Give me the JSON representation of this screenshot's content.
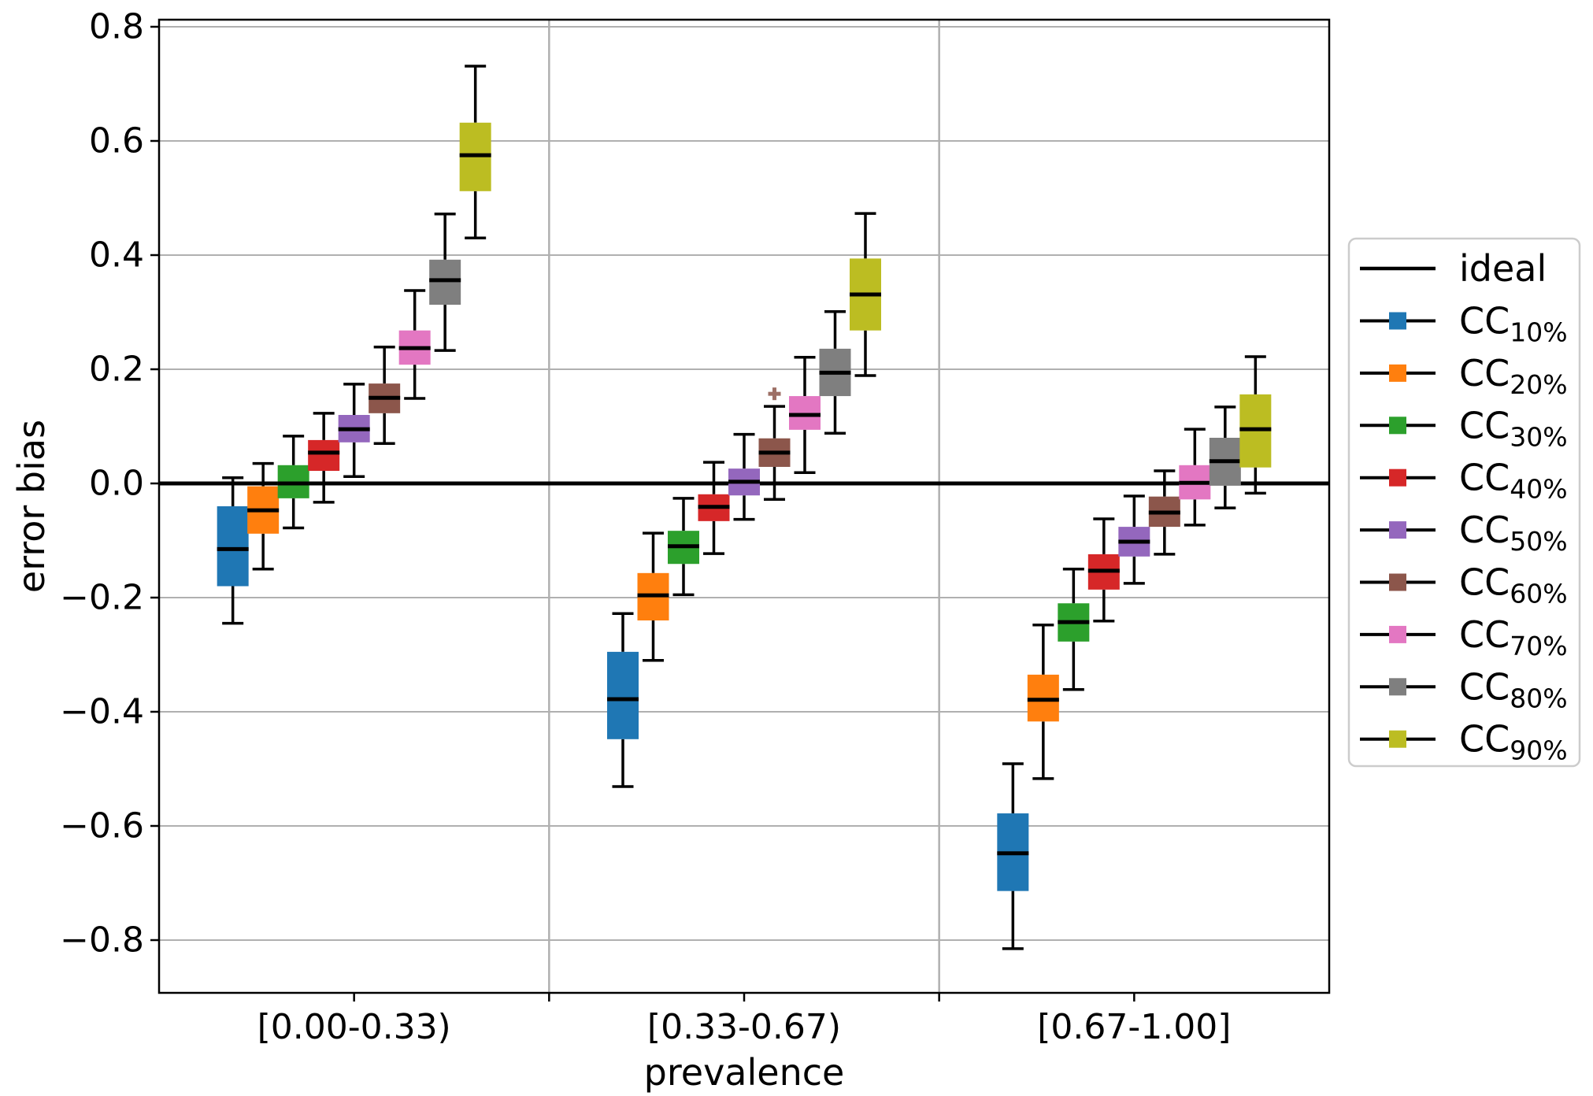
{
  "chart_data": {
    "type": "boxplot",
    "title": "",
    "xlabel": "prevalence",
    "ylabel": "error bias",
    "categories": [
      "[0.00-0.33)",
      "[0.33-0.67)",
      "[0.67-1.00]"
    ],
    "y_ticks": [
      0.8,
      0.6,
      0.4,
      0.2,
      0.0,
      -0.2,
      -0.4,
      -0.6,
      -0.8
    ],
    "ylim": [
      -0.89,
      0.81
    ],
    "grid": "on",
    "grid_color": "#b0b0b0",
    "ideal_line": {
      "label": "ideal",
      "y": 0.0,
      "color": "#000000"
    },
    "legend": {
      "position": "right",
      "ideal_label": "ideal",
      "series_prefix": "CC"
    },
    "series": [
      {
        "name": "CC10%",
        "label_main": "CC",
        "label_sub": "10%",
        "color": "#1f77b4",
        "boxes": [
          {
            "whislo": -0.245,
            "q1": -0.18,
            "med": -0.115,
            "q3": -0.04,
            "whishi": 0.01,
            "fliers": []
          },
          {
            "whislo": -0.531,
            "q1": -0.448,
            "med": -0.378,
            "q3": -0.295,
            "whishi": -0.228,
            "fliers": []
          },
          {
            "whislo": -0.815,
            "q1": -0.714,
            "med": -0.648,
            "q3": -0.578,
            "whishi": -0.491,
            "fliers": []
          }
        ]
      },
      {
        "name": "CC20%",
        "label_main": "CC",
        "label_sub": "20%",
        "color": "#ff7f0e",
        "boxes": [
          {
            "whislo": -0.15,
            "q1": -0.088,
            "med": -0.047,
            "q3": -0.005,
            "whishi": 0.035,
            "fliers": []
          },
          {
            "whislo": -0.31,
            "q1": -0.24,
            "med": -0.196,
            "q3": -0.157,
            "whishi": -0.087,
            "fliers": []
          },
          {
            "whislo": -0.517,
            "q1": -0.417,
            "med": -0.379,
            "q3": -0.335,
            "whishi": -0.248,
            "fliers": []
          }
        ]
      },
      {
        "name": "CC30%",
        "label_main": "CC",
        "label_sub": "30%",
        "color": "#2ca02c",
        "boxes": [
          {
            "whislo": -0.078,
            "q1": -0.026,
            "med": 0.0,
            "q3": 0.032,
            "whishi": 0.083,
            "fliers": []
          },
          {
            "whislo": -0.195,
            "q1": -0.141,
            "med": -0.11,
            "q3": -0.083,
            "whishi": -0.026,
            "fliers": []
          },
          {
            "whislo": -0.361,
            "q1": -0.277,
            "med": -0.243,
            "q3": -0.21,
            "whishi": -0.15,
            "fliers": []
          }
        ]
      },
      {
        "name": "CC40%",
        "label_main": "CC",
        "label_sub": "40%",
        "color": "#d62728",
        "boxes": [
          {
            "whislo": -0.033,
            "q1": 0.022,
            "med": 0.054,
            "q3": 0.076,
            "whishi": 0.123,
            "fliers": []
          },
          {
            "whislo": -0.123,
            "q1": -0.066,
            "med": -0.041,
            "q3": -0.019,
            "whishi": 0.037,
            "fliers": []
          },
          {
            "whislo": -0.241,
            "q1": -0.186,
            "med": -0.153,
            "q3": -0.124,
            "whishi": -0.062,
            "fliers": []
          }
        ]
      },
      {
        "name": "CC50%",
        "label_main": "CC",
        "label_sub": "50%",
        "color": "#9467bd",
        "boxes": [
          {
            "whislo": 0.012,
            "q1": 0.072,
            "med": 0.095,
            "q3": 0.12,
            "whishi": 0.174,
            "fliers": []
          },
          {
            "whislo": -0.063,
            "q1": -0.021,
            "med": 0.003,
            "q3": 0.026,
            "whishi": 0.086,
            "fliers": []
          },
          {
            "whislo": -0.175,
            "q1": -0.128,
            "med": -0.102,
            "q3": -0.076,
            "whishi": -0.022,
            "fliers": []
          }
        ]
      },
      {
        "name": "CC60%",
        "label_main": "CC",
        "label_sub": "60%",
        "color": "#8c564b",
        "boxes": [
          {
            "whislo": 0.07,
            "q1": 0.123,
            "med": 0.15,
            "q3": 0.175,
            "whishi": 0.239,
            "fliers": []
          },
          {
            "whislo": -0.028,
            "q1": 0.029,
            "med": 0.054,
            "q3": 0.079,
            "whishi": 0.135,
            "fliers": [
              0.157
            ]
          },
          {
            "whislo": -0.124,
            "q1": -0.076,
            "med": -0.051,
            "q3": -0.023,
            "whishi": 0.022,
            "fliers": []
          }
        ]
      },
      {
        "name": "CC70%",
        "label_main": "CC",
        "label_sub": "70%",
        "color": "#e377c2",
        "boxes": [
          {
            "whislo": 0.149,
            "q1": 0.208,
            "med": 0.237,
            "q3": 0.268,
            "whishi": 0.338,
            "fliers": []
          },
          {
            "whislo": 0.019,
            "q1": 0.094,
            "med": 0.12,
            "q3": 0.153,
            "whishi": 0.221,
            "fliers": []
          },
          {
            "whislo": -0.073,
            "q1": -0.028,
            "med": 0.001,
            "q3": 0.032,
            "whishi": 0.095,
            "fliers": []
          }
        ]
      },
      {
        "name": "CC80%",
        "label_main": "CC",
        "label_sub": "80%",
        "color": "#7f7f7f",
        "boxes": [
          {
            "whislo": 0.233,
            "q1": 0.313,
            "med": 0.356,
            "q3": 0.392,
            "whishi": 0.472,
            "fliers": []
          },
          {
            "whislo": 0.088,
            "q1": 0.153,
            "med": 0.194,
            "q3": 0.236,
            "whishi": 0.301,
            "fliers": []
          },
          {
            "whislo": -0.043,
            "q1": -0.004,
            "med": 0.039,
            "q3": 0.08,
            "whishi": 0.134,
            "fliers": []
          }
        ]
      },
      {
        "name": "CC90%",
        "label_main": "CC",
        "label_sub": "90%",
        "color": "#bcbd22",
        "boxes": [
          {
            "whislo": 0.43,
            "q1": 0.512,
            "med": 0.575,
            "q3": 0.632,
            "whishi": 0.731,
            "fliers": []
          },
          {
            "whislo": 0.189,
            "q1": 0.268,
            "med": 0.331,
            "q3": 0.394,
            "whishi": 0.473,
            "fliers": []
          },
          {
            "whislo": -0.017,
            "q1": 0.028,
            "med": 0.095,
            "q3": 0.156,
            "whishi": 0.222,
            "fliers": []
          }
        ]
      }
    ]
  }
}
